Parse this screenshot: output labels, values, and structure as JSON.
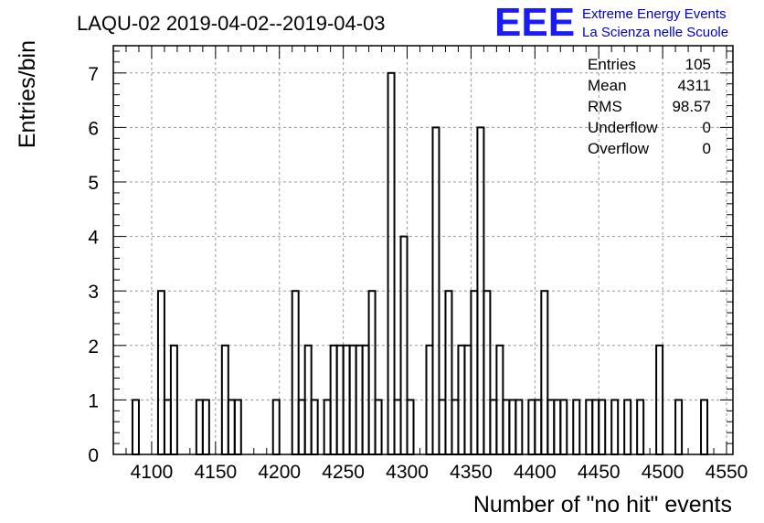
{
  "title": "LAQU-02 2019-04-02--2019-04-03",
  "logo": {
    "letters": "EEE",
    "line1": "Extreme Energy Events",
    "line2": "La Scienza nelle Scuole",
    "color": "#1a1aff"
  },
  "stats": [
    {
      "label": "Entries",
      "value": "105"
    },
    {
      "label": "Mean",
      "value": "4311"
    },
    {
      "label": "RMS",
      "value": "98.57"
    },
    {
      "label": "Underflow",
      "value": "0"
    },
    {
      "label": "Overflow",
      "value": "0"
    }
  ],
  "chart_data": {
    "type": "bar",
    "title": "LAQU-02 2019-04-02--2019-04-03",
    "xlabel": "Number of \"no hit\" events",
    "ylabel": "Entries/bin",
    "xlim": [
      4070,
      4555
    ],
    "ylim": [
      0,
      7.5
    ],
    "bin_width": 5,
    "xticks": [
      4100,
      4150,
      4200,
      4250,
      4300,
      4350,
      4400,
      4450,
      4500,
      4550
    ],
    "yticks": [
      0,
      1,
      2,
      3,
      4,
      5,
      6,
      7
    ],
    "grid": true,
    "bins": [
      {
        "x": 4085,
        "y": 1
      },
      {
        "x": 4105,
        "y": 3
      },
      {
        "x": 4110,
        "y": 1
      },
      {
        "x": 4115,
        "y": 2
      },
      {
        "x": 4135,
        "y": 1
      },
      {
        "x": 4140,
        "y": 1
      },
      {
        "x": 4155,
        "y": 2
      },
      {
        "x": 4160,
        "y": 1
      },
      {
        "x": 4165,
        "y": 1
      },
      {
        "x": 4195,
        "y": 1
      },
      {
        "x": 4210,
        "y": 3
      },
      {
        "x": 4215,
        "y": 1
      },
      {
        "x": 4220,
        "y": 2
      },
      {
        "x": 4225,
        "y": 1
      },
      {
        "x": 4235,
        "y": 1
      },
      {
        "x": 4240,
        "y": 2
      },
      {
        "x": 4245,
        "y": 2
      },
      {
        "x": 4250,
        "y": 2
      },
      {
        "x": 4255,
        "y": 2
      },
      {
        "x": 4260,
        "y": 2
      },
      {
        "x": 4265,
        "y": 2
      },
      {
        "x": 4270,
        "y": 3
      },
      {
        "x": 4275,
        "y": 1
      },
      {
        "x": 4285,
        "y": 7
      },
      {
        "x": 4290,
        "y": 1
      },
      {
        "x": 4295,
        "y": 4
      },
      {
        "x": 4300,
        "y": 1
      },
      {
        "x": 4315,
        "y": 2
      },
      {
        "x": 4320,
        "y": 6
      },
      {
        "x": 4325,
        "y": 1
      },
      {
        "x": 4330,
        "y": 3
      },
      {
        "x": 4335,
        "y": 1
      },
      {
        "x": 4340,
        "y": 2
      },
      {
        "x": 4345,
        "y": 2
      },
      {
        "x": 4350,
        "y": 3
      },
      {
        "x": 4355,
        "y": 6
      },
      {
        "x": 4360,
        "y": 3
      },
      {
        "x": 4365,
        "y": 1
      },
      {
        "x": 4370,
        "y": 2
      },
      {
        "x": 4375,
        "y": 1
      },
      {
        "x": 4380,
        "y": 1
      },
      {
        "x": 4385,
        "y": 1
      },
      {
        "x": 4395,
        "y": 1
      },
      {
        "x": 4400,
        "y": 1
      },
      {
        "x": 4405,
        "y": 3
      },
      {
        "x": 4410,
        "y": 1
      },
      {
        "x": 4415,
        "y": 1
      },
      {
        "x": 4420,
        "y": 1
      },
      {
        "x": 4430,
        "y": 1
      },
      {
        "x": 4440,
        "y": 1
      },
      {
        "x": 4445,
        "y": 1
      },
      {
        "x": 4450,
        "y": 1
      },
      {
        "x": 4460,
        "y": 1
      },
      {
        "x": 4470,
        "y": 1
      },
      {
        "x": 4480,
        "y": 1
      },
      {
        "x": 4495,
        "y": 2
      },
      {
        "x": 4510,
        "y": 1
      },
      {
        "x": 4530,
        "y": 1
      }
    ]
  }
}
